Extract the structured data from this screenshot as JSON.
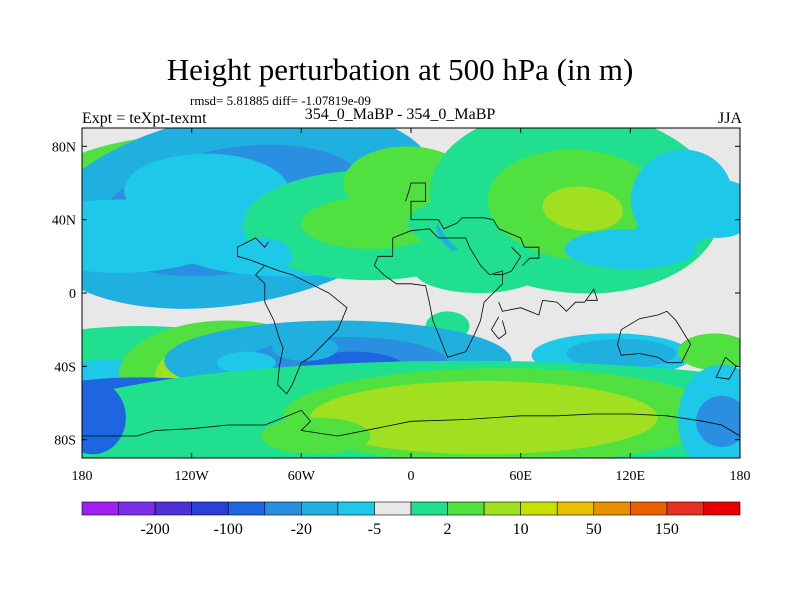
{
  "chart_data": {
    "type": "heatmap",
    "title": "Height perturbation at 500 hPa (in m)",
    "stats": "rmsd= 5.81885 diff= -1.07819e-09",
    "left_label": "Expt = teXpt-texmt",
    "center_label": "354_0_MaBP - 354_0_MaBP",
    "right_label": "JJA",
    "x_ticks": [
      "180",
      "120W",
      "60W",
      "0",
      "60E",
      "120E",
      "180"
    ],
    "y_ticks": [
      "80N",
      "40N",
      "0",
      "40S",
      "80S"
    ],
    "xlim": [
      -180,
      180
    ],
    "ylim": [
      -90,
      90
    ],
    "colorbar": {
      "levels": [
        "-200",
        "-100",
        "-20",
        "-5",
        "2",
        "10",
        "50",
        "150"
      ],
      "colors": [
        "#a020f0",
        "#7b2fe6",
        "#5030d8",
        "#2a40d8",
        "#1e66e0",
        "#2a8fe0",
        "#20b0e0",
        "#1ec8e8",
        "#e8e8e8",
        "#20e090",
        "#50e040",
        "#a0e020",
        "#c8e000",
        "#e8c000",
        "#e89000",
        "#e86000",
        "#e83020",
        "#e80000"
      ]
    }
  }
}
